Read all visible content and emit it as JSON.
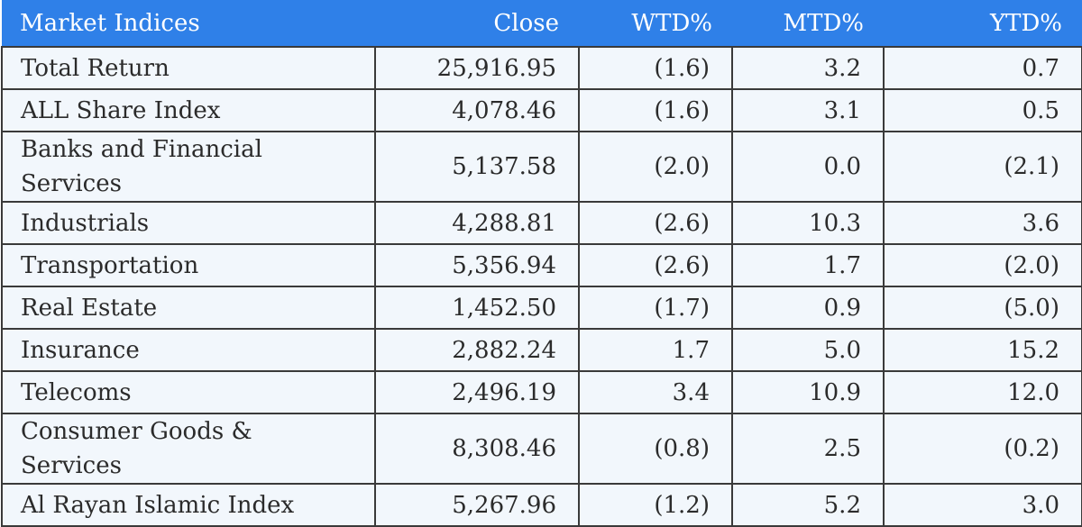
{
  "table": {
    "headers": [
      "Market Indices",
      "Close",
      "WTD%",
      "MTD%",
      "YTD%"
    ],
    "rows": [
      {
        "name": "Total Return",
        "close": "25,916.95",
        "wtd": "(1.6)",
        "mtd": "3.2",
        "ytd": "0.7"
      },
      {
        "name": "ALL Share Index",
        "close": "4,078.46",
        "wtd": "(1.6)",
        "mtd": "3.1",
        "ytd": "0.5"
      },
      {
        "name": "Banks and Financial Services",
        "close": "5,137.58",
        "wtd": "(2.0)",
        "mtd": "0.0",
        "ytd": "(2.1)"
      },
      {
        "name": "Industrials",
        "close": "4,288.81",
        "wtd": "(2.6)",
        "mtd": "10.3",
        "ytd": "3.6"
      },
      {
        "name": "Transportation",
        "close": "5,356.94",
        "wtd": "(2.6)",
        "mtd": "1.7",
        "ytd": "(2.0)"
      },
      {
        "name": "Real Estate",
        "close": "1,452.50",
        "wtd": "(1.7)",
        "mtd": "0.9",
        "ytd": "(5.0)"
      },
      {
        "name": "Insurance",
        "close": "2,882.24",
        "wtd": "1.7",
        "mtd": "5.0",
        "ytd": "15.2"
      },
      {
        "name": "Telecoms",
        "close": "2,496.19",
        "wtd": "3.4",
        "mtd": "10.9",
        "ytd": "12.0"
      },
      {
        "name": "Consumer Goods & Services",
        "close": "8,308.46",
        "wtd": "(0.8)",
        "mtd": "2.5",
        "ytd": "(0.2)"
      },
      {
        "name": "Al Rayan Islamic Index",
        "close": "5,267.96",
        "wtd": "(1.2)",
        "mtd": "5.2",
        "ytd": "3.0"
      }
    ]
  },
  "colors": {
    "header_background": "#2f80e8",
    "header_text": "#ffffff",
    "row_background": "#f2f7fc",
    "border": "#3a3a3a"
  }
}
